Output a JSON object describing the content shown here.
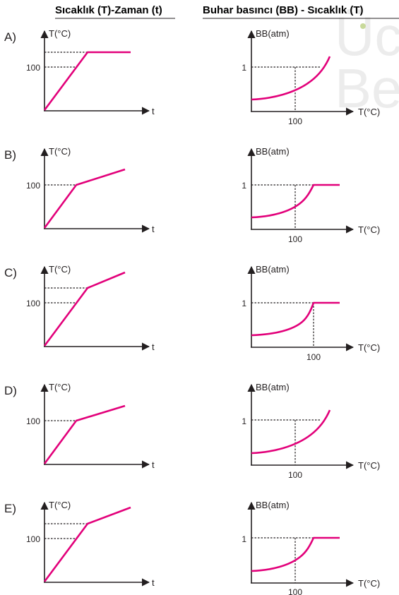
{
  "headers": {
    "left": "Sıcaklık (T)-Zaman (t)",
    "right": "Buhar basıncı (BB) - Sıcaklık (T)"
  },
  "watermark": {
    "line1": "Üc",
    "line2": "Be"
  },
  "colors": {
    "curve": "#e2007a",
    "axis": "#231f20",
    "watermark": "#ececec",
    "watermark_dot": "#c8d99a"
  },
  "options": [
    {
      "label": "A)"
    },
    {
      "label": "B)"
    },
    {
      "label": "C)"
    },
    {
      "label": "D)"
    },
    {
      "label": "E)"
    }
  ],
  "chart_data": [
    {
      "option": "A)",
      "chart": "T-t",
      "type": "line",
      "ylabel": "T(°C)",
      "xlabel": "t",
      "y_ticks": [
        "100"
      ],
      "shape": "rises linearly through 100 then stays constant (horizontal plateau)",
      "series": [
        {
          "x": [
            0,
            0.5,
            1.1
          ],
          "y": [
            0,
            130,
            130
          ]
        }
      ]
    },
    {
      "option": "A)",
      "chart": "BB-T",
      "type": "line",
      "ylabel": "BB(atm)",
      "xlabel": "T(°C)",
      "y_ticks": [
        "1"
      ],
      "x_ticks": [
        "100"
      ],
      "shape": "rises exponentially, passes 1 atm at 100 °C and keeps rising",
      "series": [
        {
          "x": [
            0,
            50,
            100,
            140,
            170
          ],
          "y": [
            0.2,
            0.27,
            1.0,
            1.4,
            1.87
          ]
        }
      ]
    },
    {
      "option": "B)",
      "chart": "T-t",
      "type": "line",
      "ylabel": "T(°C)",
      "xlabel": "t",
      "y_ticks": [
        "100"
      ],
      "shape": "rises steeply to 100, then keeps rising with smaller slope",
      "series": [
        {
          "x": [
            0,
            0.45,
            1.1
          ],
          "y": [
            0,
            100,
            130
          ]
        }
      ]
    },
    {
      "option": "B)",
      "chart": "BB-T",
      "type": "line",
      "ylabel": "BB(atm)",
      "xlabel": "T(°C)",
      "y_ticks": [
        "1"
      ],
      "x_ticks": [
        "100"
      ],
      "shape": "rises exponentially to 1 atm then stays constant",
      "series": [
        {
          "x": [
            0,
            50,
            100,
            145,
            190
          ],
          "y": [
            0.2,
            0.27,
            0.45,
            1.0,
            1.0
          ]
        }
      ]
    },
    {
      "option": "C)",
      "chart": "T-t",
      "type": "line",
      "ylabel": "T(°C)",
      "xlabel": "t",
      "y_ticks": [
        "100"
      ],
      "shape": "rises steeply past 100, then keeps rising with smaller slope",
      "series": [
        {
          "x": [
            0,
            0.58,
            1.1
          ],
          "y": [
            0,
            130,
            175
          ]
        }
      ]
    },
    {
      "option": "C)",
      "chart": "BB-T",
      "type": "line",
      "ylabel": "BB(atm)",
      "xlabel": "T(°C)",
      "y_ticks": [
        "1"
      ],
      "x_ticks": [
        "100"
      ],
      "shape": "rises exponentially to 1 atm at 100 °C then stays constant",
      "series": [
        {
          "x": [
            0,
            50,
            100,
            150
          ],
          "y": [
            0.2,
            0.3,
            1.0,
            1.0
          ]
        }
      ]
    },
    {
      "option": "D)",
      "chart": "T-t",
      "type": "line",
      "ylabel": "T(°C)",
      "xlabel": "t",
      "y_ticks": [
        "100"
      ],
      "shape": "rises steeply to 100, then keeps rising with smaller slope",
      "series": [
        {
          "x": [
            0,
            0.45,
            1.1
          ],
          "y": [
            0,
            100,
            130
          ]
        }
      ]
    },
    {
      "option": "D)",
      "chart": "BB-T",
      "type": "line",
      "ylabel": "BB(atm)",
      "xlabel": "T(°C)",
      "y_ticks": [
        "1"
      ],
      "x_ticks": [
        "100"
      ],
      "shape": "rises exponentially, below 1 atm at the marked 100 °C, keeps rising",
      "series": [
        {
          "x": [
            0,
            50,
            100,
            170
          ],
          "y": [
            0.2,
            0.27,
            0.45,
            1.4
          ]
        }
      ]
    },
    {
      "option": "E)",
      "chart": "T-t",
      "type": "line",
      "ylabel": "T(°C)",
      "xlabel": "t",
      "y_ticks": [
        "100"
      ],
      "shape": "rises steeply past 100, then keeps rising with smaller slope",
      "series": [
        {
          "x": [
            0,
            0.58,
            1.1
          ],
          "y": [
            0,
            130,
            175
          ]
        }
      ]
    },
    {
      "option": "E)",
      "chart": "BB-T",
      "type": "line",
      "ylabel": "BB(atm)",
      "xlabel": "T(°C)",
      "y_ticks": [
        "1"
      ],
      "x_ticks": [
        "100"
      ],
      "shape": "rises exponentially to 1 atm then stays constant",
      "series": [
        {
          "x": [
            0,
            50,
            100,
            145,
            190
          ],
          "y": [
            0.2,
            0.27,
            0.45,
            1.0,
            1.0
          ]
        }
      ]
    }
  ]
}
